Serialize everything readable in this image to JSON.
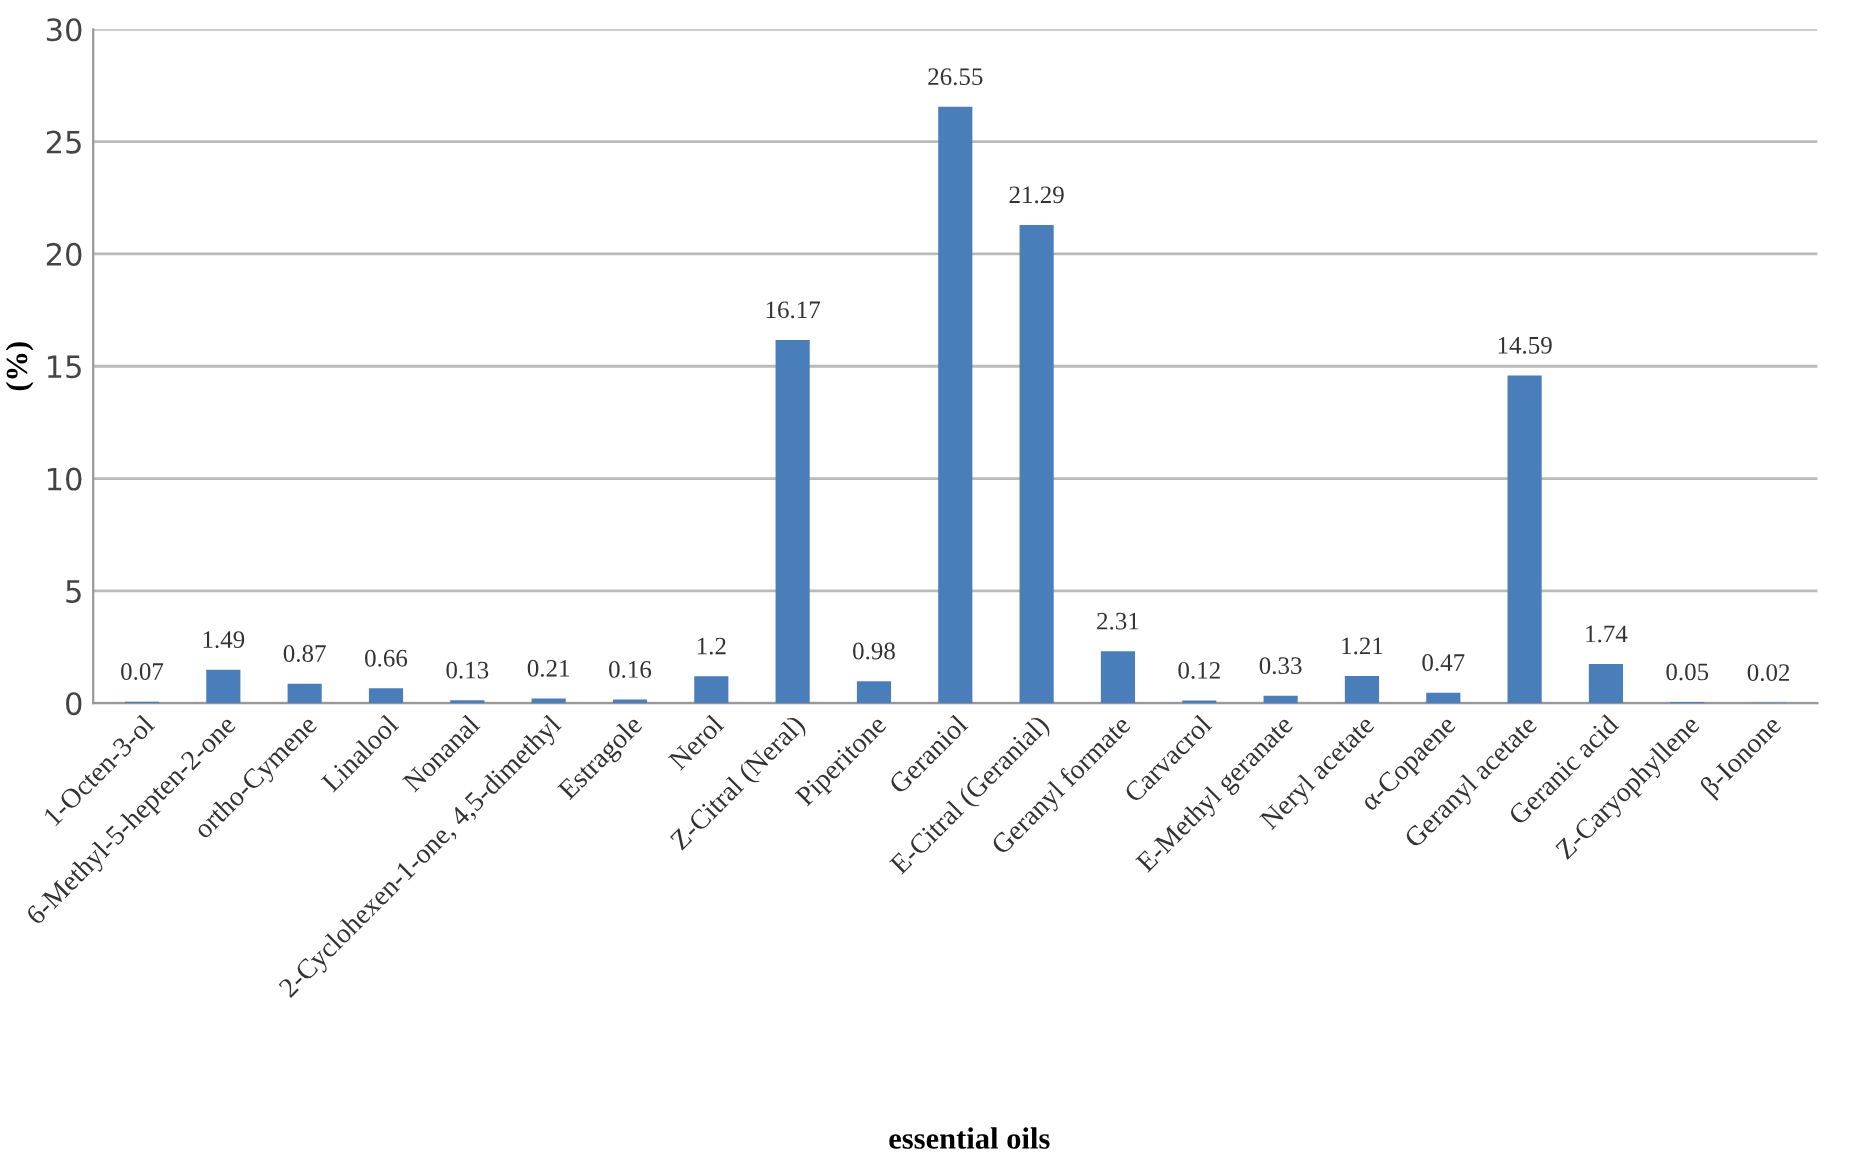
{
  "chart_data": {
    "type": "bar",
    "xlabel": "essential oils",
    "ylabel": "(%)",
    "categories": [
      "1-Octen-3-ol",
      "6-Methyl-5-hepten-2-one",
      "ortho-Cymene",
      "Linalool",
      "Nonanal",
      "2-Cyclohexen-1-one, 4,5-dimethyl",
      "Estragole",
      "Nerol",
      "Z-Citral (Neral)",
      "Piperitone",
      "Geraniol",
      "E-Citral (Geranial)",
      "Geranyl formate",
      "Carvacrol",
      "E-Methyl geranate",
      "Neryl acetate",
      "α-Copaene",
      "Geranyl acetate",
      "Geranic acid",
      "Z-Caryophyllene",
      "β-Ionone"
    ],
    "values": [
      0.07,
      1.49,
      0.87,
      0.66,
      0.13,
      0.21,
      0.16,
      1.2,
      16.17,
      0.98,
      26.55,
      21.29,
      2.31,
      0.12,
      0.33,
      1.21,
      0.47,
      14.59,
      1.74,
      0.05,
      0.02
    ],
    "color": "#4a7ebb",
    "ylim": [
      0,
      30
    ],
    "yticks": [
      0,
      5,
      10,
      15,
      20,
      25,
      30
    ],
    "grid": "y",
    "data_labels": true
  }
}
